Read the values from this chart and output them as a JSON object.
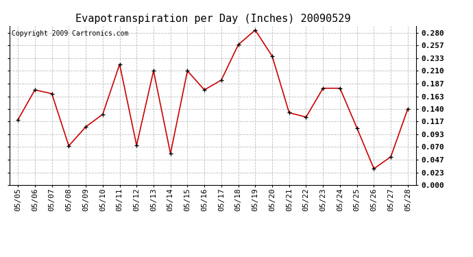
{
  "title": "Evapotranspiration per Day (Inches) 20090529",
  "copyright": "Copyright 2009 Cartronics.com",
  "dates": [
    "05/05",
    "05/06",
    "05/07",
    "05/08",
    "05/09",
    "05/10",
    "05/11",
    "05/12",
    "05/13",
    "05/14",
    "05/15",
    "05/16",
    "05/17",
    "05/18",
    "05/19",
    "05/20",
    "05/21",
    "05/22",
    "05/23",
    "05/24",
    "05/25",
    "05/26",
    "05/27",
    "05/28"
  ],
  "values": [
    0.12,
    0.175,
    0.168,
    0.072,
    0.107,
    0.13,
    0.222,
    0.073,
    0.21,
    0.058,
    0.21,
    0.175,
    0.193,
    0.258,
    0.285,
    0.237,
    0.133,
    0.125,
    0.178,
    0.178,
    0.105,
    0.03,
    0.052,
    0.14
  ],
  "line_color": "#cc0000",
  "marker": "+",
  "marker_color": "#000000",
  "background_color": "#ffffff",
  "grid_color": "#bbbbbb",
  "ylim": [
    0.0,
    0.293
  ],
  "yticks": [
    0.0,
    0.023,
    0.047,
    0.07,
    0.093,
    0.117,
    0.14,
    0.163,
    0.187,
    0.21,
    0.233,
    0.257,
    0.28
  ],
  "title_fontsize": 11,
  "copyright_fontsize": 7,
  "tick_fontsize": 8
}
